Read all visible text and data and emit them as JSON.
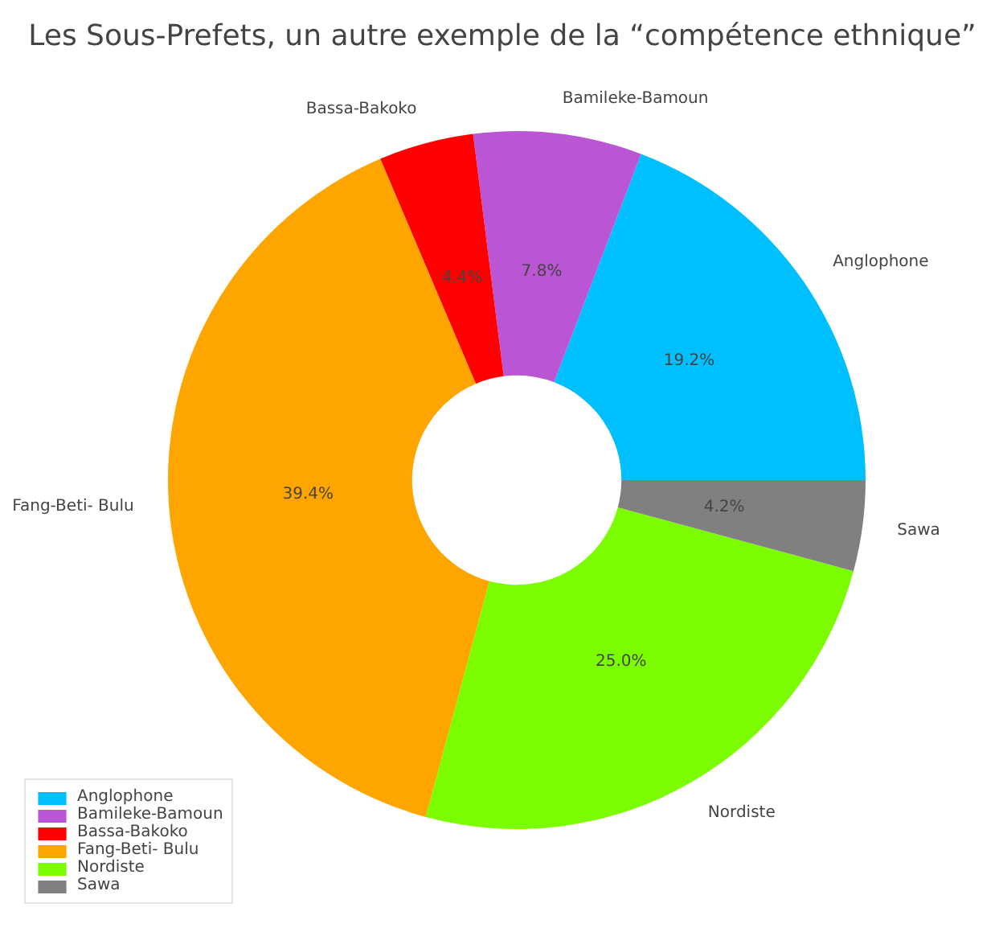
{
  "chart_data": {
    "type": "donut",
    "title": "Les Sous-Prefets, un autre exemple de la “compétence ethnique”",
    "categories": [
      "Anglophone",
      "Bamileke-Bamoun",
      "Bassa-Bakoko",
      "Fang-Beti- Bulu",
      "Nordiste",
      "Sawa"
    ],
    "values": [
      19.2,
      7.8,
      4.4,
      39.4,
      25.0,
      4.2
    ],
    "value_labels": [
      "19.2%",
      "7.8%",
      "4.4%",
      "39.4%",
      "25.0%",
      "4.2%"
    ],
    "colors": [
      "#00bfff",
      "#ba55d3",
      "#ff0000",
      "#ffa500",
      "#7cfc00",
      "#808080"
    ],
    "legend": "bottom left"
  }
}
